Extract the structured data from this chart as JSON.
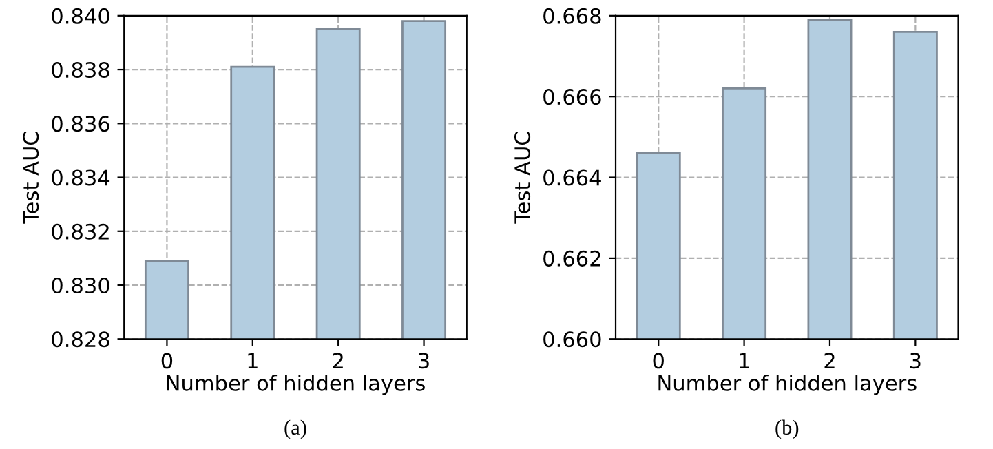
{
  "chart_data": [
    {
      "type": "bar",
      "categories": [
        "0",
        "1",
        "2",
        "3"
      ],
      "values": [
        0.8309,
        0.8381,
        0.8395,
        0.8398
      ],
      "color": "#b3cde0",
      "xlabel": "Number of hidden layers",
      "ylabel": "Test AUC",
      "ylim": [
        0.828,
        0.84
      ],
      "yticks": [
        {
          "value": 0.828,
          "label": "0.828"
        },
        {
          "value": 0.83,
          "label": "0.830"
        },
        {
          "value": 0.832,
          "label": "0.832"
        },
        {
          "value": 0.834,
          "label": "0.834"
        },
        {
          "value": 0.836,
          "label": "0.836"
        },
        {
          "value": 0.838,
          "label": "0.838"
        },
        {
          "value": 0.84,
          "label": "0.840"
        }
      ],
      "grid": true,
      "annotations": [
        "(a)"
      ]
    },
    {
      "type": "bar",
      "categories": [
        "0",
        "1",
        "2",
        "3"
      ],
      "values": [
        0.6646,
        0.6662,
        0.6679,
        0.6676
      ],
      "color": "#b3cde0",
      "xlabel": "Number of hidden layers",
      "ylabel": "Test AUC",
      "ylim": [
        0.66,
        0.668
      ],
      "yticks": [
        {
          "value": 0.66,
          "label": "0.660"
        },
        {
          "value": 0.662,
          "label": "0.662"
        },
        {
          "value": 0.664,
          "label": "0.664"
        },
        {
          "value": 0.666,
          "label": "0.666"
        },
        {
          "value": 0.668,
          "label": "0.668"
        }
      ],
      "grid": true,
      "annotations": [
        "(b)"
      ]
    }
  ]
}
